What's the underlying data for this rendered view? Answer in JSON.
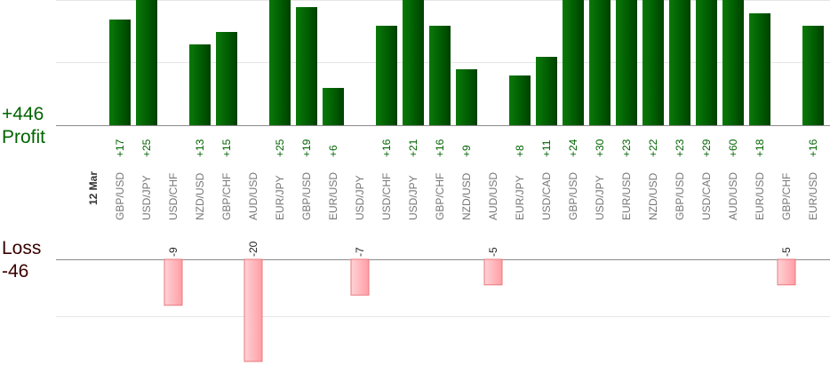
{
  "summary": {
    "profit_total": "+446",
    "profit_label": "Profit",
    "loss_label": "Loss",
    "loss_total": "-46"
  },
  "chart_data": {
    "type": "bar",
    "date_label": "12 Mar",
    "categories": [
      "GBP/USD",
      "USD/JPY",
      "USD/CHF",
      "NZD/USD",
      "GBP/CHF",
      "AUD/USD",
      "EUR/JPY",
      "GBP/USD",
      "EUR/USD",
      "USD/JPY",
      "USD/CHF",
      "USD/JPY",
      "GBP/CHF",
      "NZD/USD",
      "AUD/USD",
      "EUR/JPY",
      "USD/CAD",
      "GBP/USD",
      "USD/JPY",
      "EUR/USD",
      "NZD/USD",
      "GBP/USD",
      "USD/CAD",
      "AUD/USD",
      "EUR/USD",
      "GBP/CHF",
      "EUR/USD"
    ],
    "series": [
      {
        "values": [
          17,
          25,
          0,
          13,
          15,
          0,
          25,
          19,
          6,
          0,
          16,
          21,
          16,
          9,
          0,
          8,
          11,
          24,
          30,
          23,
          22,
          23,
          29,
          60,
          18,
          0,
          16
        ],
        "labels": [
          "+17",
          "+25",
          "",
          "+13",
          "+15",
          "",
          "+25",
          "+19",
          "+6",
          "",
          "+16",
          "+21",
          "+16",
          "+9",
          "",
          "+8",
          "+11",
          "+24",
          "+30",
          "+23",
          "+22",
          "+23",
          "+29",
          "+60",
          "+18",
          "",
          "+16"
        ]
      },
      {
        "values": [
          0,
          0,
          -9,
          0,
          0,
          -20,
          0,
          0,
          0,
          -7,
          0,
          0,
          0,
          0,
          -5,
          0,
          0,
          0,
          0,
          0,
          0,
          0,
          0,
          0,
          0,
          -5,
          0
        ],
        "labels": [
          "",
          "",
          "-9",
          "",
          "",
          "-20",
          "",
          "",
          "",
          "-7",
          "",
          "",
          "",
          "",
          "-5",
          "",
          "",
          "",
          "",
          "",
          "",
          "",
          "",
          "",
          "",
          "-5",
          ""
        ]
      }
    ],
    "colors": {
      "profit": "#006400",
      "loss": "#ffb3b8",
      "loss_border": "#e8787e",
      "axis": "#999999",
      "grid": "#e6e6e6"
    }
  }
}
